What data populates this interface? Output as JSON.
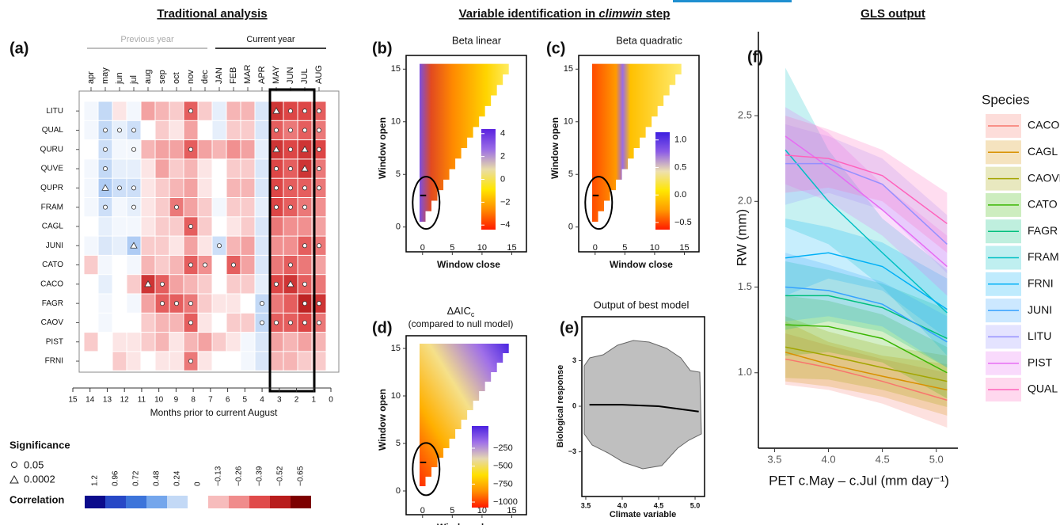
{
  "headers": {
    "left": "Traditional analysis",
    "middle_before": "Variable identification in",
    "middle_italic": "climwin",
    "middle_after": "step",
    "right": "GLS output"
  },
  "chart_data": [
    {
      "type": "heatmap",
      "label": "(a)",
      "previous_year_label": "Previous year",
      "current_year_label": "Current year",
      "columns": [
        "apr",
        "may",
        "jun",
        "jul",
        "aug",
        "sep",
        "oct",
        "nov",
        "dec",
        "JAN",
        "FEB",
        "MAR",
        "APR",
        "MAY",
        "JUN",
        "JUL",
        "AUG"
      ],
      "rows": [
        "LITU",
        "QUAL",
        "QURU",
        "QUVE",
        "QUPR",
        "FRAM",
        "CAGL",
        "JUNI",
        "CATO",
        "CACO",
        "FAGR",
        "CAOV",
        "PIST",
        "FRNI"
      ],
      "values": [
        [
          0.05,
          0.24,
          -0.05,
          0.05,
          -0.2,
          -0.15,
          -0.1,
          -0.35,
          -0.1,
          0.1,
          -0.15,
          -0.15,
          0.15,
          -0.45,
          -0.4,
          -0.4,
          -0.35
        ],
        [
          0.05,
          0.24,
          0.1,
          0.2,
          0,
          -0.1,
          -0.05,
          -0.2,
          0,
          0.1,
          -0.1,
          -0.1,
          0.15,
          -0.35,
          -0.3,
          -0.35,
          -0.3
        ],
        [
          0,
          0.2,
          0.05,
          0.05,
          -0.15,
          -0.2,
          -0.2,
          -0.35,
          -0.2,
          -0.15,
          -0.25,
          -0.2,
          0.1,
          -0.45,
          -0.4,
          -0.45,
          -0.4
        ],
        [
          0.05,
          0.24,
          0.1,
          0.1,
          -0.05,
          -0.2,
          -0.1,
          -0.15,
          -0.05,
          0,
          -0.1,
          -0.1,
          0.15,
          -0.4,
          -0.35,
          -0.45,
          -0.3
        ],
        [
          0.05,
          0.3,
          0.2,
          0.2,
          -0.05,
          -0.1,
          -0.15,
          -0.2,
          -0.05,
          0,
          -0.15,
          -0.15,
          0.15,
          -0.4,
          -0.35,
          -0.35,
          -0.3
        ],
        [
          0.05,
          0.2,
          0.05,
          0.1,
          -0.05,
          -0.1,
          -0.3,
          -0.2,
          -0.1,
          0.05,
          -0.1,
          -0.1,
          0.1,
          -0.4,
          -0.35,
          -0.3,
          -0.25
        ],
        [
          0,
          0.1,
          0.05,
          0.05,
          -0.05,
          -0.1,
          -0.1,
          -0.35,
          -0.1,
          0,
          -0.05,
          -0.1,
          0.15,
          -0.3,
          -0.25,
          -0.25,
          -0.2
        ],
        [
          0.05,
          0.15,
          0.1,
          0.3,
          -0.1,
          -0.1,
          -0.05,
          -0.2,
          -0.05,
          0.2,
          -0.15,
          -0.2,
          0.15,
          -0.25,
          -0.25,
          -0.35,
          -0.3
        ],
        [
          -0.1,
          0.05,
          0,
          0.05,
          -0.15,
          -0.1,
          -0.15,
          -0.35,
          -0.25,
          0,
          -0.35,
          -0.2,
          0.15,
          -0.3,
          -0.35,
          -0.3,
          -0.2
        ],
        [
          0,
          0.1,
          0,
          -0.1,
          -0.45,
          -0.35,
          -0.2,
          -0.15,
          -0.1,
          0,
          -0.1,
          -0.1,
          0.1,
          -0.4,
          -0.45,
          -0.35,
          -0.3
        ],
        [
          0,
          0.05,
          0,
          0.05,
          -0.2,
          -0.35,
          -0.35,
          -0.3,
          -0.1,
          -0.05,
          -0.05,
          0,
          0.24,
          -0.3,
          -0.35,
          -0.5,
          -0.45
        ],
        [
          0,
          0.05,
          0,
          0,
          -0.1,
          -0.15,
          -0.15,
          -0.35,
          -0.05,
          0,
          -0.1,
          -0.1,
          0.24,
          -0.35,
          -0.35,
          -0.4,
          -0.3
        ],
        [
          -0.1,
          0,
          -0.05,
          -0.05,
          -0.1,
          -0.15,
          -0.05,
          -0.15,
          -0.2,
          -0.1,
          -0.05,
          0.05,
          0.15,
          -0.2,
          -0.15,
          -0.2,
          -0.15
        ],
        [
          0,
          0,
          -0.1,
          -0.05,
          0,
          -0.05,
          -0.05,
          -0.3,
          -0.05,
          0,
          0,
          0.05,
          0.15,
          -0.15,
          -0.15,
          -0.1,
          -0.1
        ]
      ],
      "significance": [
        [
          null,
          null,
          null,
          null,
          null,
          null,
          null,
          0.05,
          null,
          null,
          null,
          null,
          null,
          0.0002,
          0.05,
          0.05,
          0.05
        ],
        [
          null,
          0.05,
          0.05,
          0.05,
          null,
          null,
          null,
          null,
          null,
          null,
          null,
          null,
          null,
          0.05,
          0.05,
          0.05,
          0.05
        ],
        [
          null,
          0.05,
          null,
          0.05,
          null,
          null,
          null,
          0.05,
          null,
          null,
          null,
          null,
          null,
          0.0002,
          0.05,
          0.0002,
          0.05
        ],
        [
          null,
          0.05,
          null,
          null,
          null,
          null,
          null,
          null,
          null,
          null,
          null,
          null,
          null,
          0.05,
          0.05,
          0.0002,
          0.05
        ],
        [
          null,
          0.0002,
          0.05,
          0.05,
          null,
          null,
          null,
          null,
          null,
          null,
          null,
          null,
          null,
          0.05,
          0.05,
          0.05,
          0.05
        ],
        [
          null,
          0.05,
          null,
          0.05,
          null,
          null,
          0.05,
          null,
          null,
          null,
          null,
          null,
          null,
          0.05,
          0.05,
          0.05,
          null
        ],
        [
          null,
          null,
          null,
          null,
          null,
          null,
          null,
          0.05,
          null,
          null,
          null,
          null,
          null,
          null,
          null,
          null,
          null
        ],
        [
          null,
          null,
          null,
          0.0002,
          null,
          null,
          null,
          null,
          null,
          0.05,
          null,
          null,
          null,
          null,
          null,
          0.05,
          0.05
        ],
        [
          null,
          null,
          null,
          null,
          null,
          null,
          null,
          0.05,
          0.05,
          null,
          0.05,
          null,
          null,
          null,
          0.05,
          null,
          null
        ],
        [
          null,
          null,
          null,
          null,
          0.0002,
          0.05,
          null,
          null,
          null,
          null,
          null,
          null,
          null,
          0.05,
          0.0002,
          0.05,
          null
        ],
        [
          null,
          null,
          null,
          null,
          null,
          0.05,
          0.05,
          0.05,
          null,
          null,
          null,
          null,
          0.05,
          null,
          null,
          0.05,
          0.05
        ],
        [
          null,
          null,
          null,
          null,
          null,
          null,
          null,
          0.05,
          null,
          null,
          null,
          null,
          0.05,
          0.05,
          0.05,
          0.05,
          0.05
        ],
        [
          null,
          null,
          null,
          null,
          null,
          null,
          null,
          null,
          null,
          null,
          null,
          null,
          null,
          null,
          null,
          null,
          null
        ],
        [
          null,
          null,
          null,
          null,
          null,
          null,
          null,
          0.05,
          null,
          null,
          null,
          null,
          null,
          null,
          null,
          null,
          null
        ]
      ],
      "month_ticks": [
        15,
        14,
        13,
        12,
        11,
        10,
        9,
        8,
        7,
        6,
        5,
        4,
        3,
        2,
        1,
        0
      ],
      "xlabel": "Months prior to current August",
      "significance_title": "Significance",
      "significance_levels": [
        0.05,
        0.0002
      ],
      "colorbar_title": "Correlation",
      "colorbar": {
        "ticks": [
          1.2,
          0.96,
          0.72,
          0.48,
          0.24,
          0,
          {
            "value": -0.13,
            "label": "−0.13"
          },
          {
            "value": -0.26,
            "label": "−0.26"
          },
          {
            "value": -0.39,
            "label": "−0.39"
          },
          {
            "value": -0.52,
            "label": "−0.52"
          },
          {
            "value": -0.65,
            "label": "−0.65"
          }
        ],
        "colors": [
          "#0b0b8c",
          "#2748c6",
          "#3c74da",
          "#74a6ec",
          "#c3d9f6",
          "#ffffff",
          "#f7bcbc",
          "#f08c8c",
          "#e04a4a",
          "#b81c1c",
          "#7d0000"
        ]
      }
    },
    {
      "type": "triangular-heatmap",
      "label": "(b)",
      "title": "Beta linear",
      "xlabel": "Window close",
      "ylabel": "Window open",
      "xlim": [
        -1.3,
        16.8
      ],
      "ylim": [
        -1,
        16
      ],
      "xticks": [
        0,
        5,
        10,
        15
      ],
      "yticks": [
        0,
        5,
        10,
        15
      ],
      "colorbar_lim": [
        -4.4,
        4.4
      ],
      "colorbar_ticks": [
        4,
        2,
        0,
        {
          "value": -2,
          "label": "−2"
        },
        {
          "value": -4,
          "label": "−4"
        }
      ],
      "colorbar_colors": [
        "#ff1a00",
        "#ff8c00",
        "#ffe600",
        "#e9dca8",
        "#9a6ce6",
        "#5a22e0"
      ]
    },
    {
      "type": "triangular-heatmap",
      "label": "(c)",
      "title": "Beta quadratic",
      "xlabel": "Window close",
      "ylabel": "Window open",
      "xlim": [
        -1.3,
        16.8
      ],
      "ylim": [
        -1,
        16
      ],
      "xticks": [
        0,
        5,
        10,
        15
      ],
      "yticks": [
        0,
        5,
        10,
        15
      ],
      "colorbar_lim": [
        -0.63,
        1.14
      ],
      "colorbar_ticks": [
        {
          "value": 1,
          "label": "1.0"
        },
        {
          "value": 0.5,
          "label": "0.5"
        },
        {
          "value": 0,
          "label": "0.0"
        },
        {
          "value": -0.5,
          "label": "−0.5"
        }
      ],
      "colorbar_colors": [
        "#ff1a00",
        "#ff9a00",
        "#ffe600",
        "#eee0b0",
        "#8c5ce6",
        "#3c1ee0"
      ]
    },
    {
      "type": "triangular-heatmap",
      "label": "(d)",
      "title": "ΔAIC",
      "title_subscript": "c",
      "subtitle": "(compared to null model)",
      "xlabel": "Window close",
      "ylabel": "Window open",
      "xlim": [
        -1.3,
        16.8
      ],
      "ylim": [
        -1,
        16
      ],
      "xticks": [
        0,
        5,
        10,
        15
      ],
      "yticks": [
        0,
        5,
        10,
        15
      ],
      "colorbar_lim": [
        -1077,
        59
      ],
      "colorbar_ticks": [
        {
          "value": -250,
          "label": "−250"
        },
        {
          "value": -500,
          "label": "−500"
        },
        {
          "value": -750,
          "label": "−750"
        },
        {
          "value": -1000,
          "label": "−1000"
        }
      ],
      "colorbar_colors": [
        "#ff1a00",
        "#ff9000",
        "#ffe000",
        "#e6d8b0",
        "#a070e8",
        "#4a20e0"
      ]
    },
    {
      "type": "scatter",
      "label": "(e)",
      "title": "Output of best model",
      "xlabel": "Climate variable",
      "ylabel": "Biological response",
      "xlim": [
        3.446,
        5.13
      ],
      "ylim": [
        -5.94,
        5.89
      ],
      "xticks": [
        3.5,
        {
          "value": 4,
          "label": "4.0"
        },
        4.5,
        {
          "value": 5,
          "label": "5.0"
        }
      ],
      "yticks": [
        3,
        0,
        {
          "value": -3,
          "label": "−3"
        }
      ],
      "fit": {
        "x": [
          3.55,
          4,
          4.5,
          5.05
        ],
        "y": [
          0.1,
          0.1,
          0,
          -0.35
        ]
      }
    },
    {
      "type": "line",
      "label": "(f)",
      "ylabel": "RW (mm)",
      "xlabel": "PET c.May – c.Jul (mm day⁻¹)",
      "legend_title": "Species",
      "xlim": [
        3.35,
        5.2
      ],
      "ylim": [
        0.56,
        2.99
      ],
      "xticks": [
        3.5,
        {
          "value": 4,
          "label": "4.0"
        },
        4.5,
        {
          "value": 5,
          "label": "5.0"
        }
      ],
      "yticks": [
        {
          "value": 1,
          "label": "1.0"
        },
        1.5,
        {
          "value": 2,
          "label": "2.0"
        },
        2.5
      ],
      "x": [
        3.6,
        4,
        4.5,
        5.1
      ],
      "series": [
        {
          "name": "CACO",
          "color": "#f8766d",
          "values": [
            1.08,
            1.03,
            0.95,
            0.84
          ],
          "lower": [
            0.93,
            0.9,
            0.82,
            0.68
          ],
          "upper": [
            1.23,
            1.16,
            1.08,
            1
          ]
        },
        {
          "name": "CAGL",
          "color": "#d89000",
          "values": [
            1.12,
            1.05,
            0.98,
            0.9
          ],
          "lower": [
            0.95,
            0.92,
            0.86,
            0.75
          ],
          "upper": [
            1.3,
            1.18,
            1.1,
            1.05
          ]
        },
        {
          "name": "CAOVL",
          "color": "#a3a500",
          "values": [
            1.15,
            1.1,
            1.03,
            0.95
          ],
          "lower": [
            0.97,
            0.96,
            0.9,
            0.8
          ],
          "upper": [
            1.33,
            1.24,
            1.16,
            1.1
          ]
        },
        {
          "name": "CATO",
          "color": "#39b600",
          "values": [
            1.28,
            1.27,
            1.2,
            1
          ],
          "lower": [
            1.1,
            1.12,
            1.06,
            0.85
          ],
          "upper": [
            1.45,
            1.42,
            1.34,
            1.15
          ]
        },
        {
          "name": "FAGR",
          "color": "#00bf7d",
          "values": [
            1.45,
            1.45,
            1.38,
            1.2
          ],
          "lower": [
            1.25,
            1.3,
            1.24,
            1.03
          ],
          "upper": [
            1.65,
            1.6,
            1.52,
            1.37
          ]
        },
        {
          "name": "FRAM",
          "color": "#00bfc4",
          "values": [
            2.3,
            2,
            1.7,
            1.35
          ],
          "lower": [
            1.85,
            1.75,
            1.5,
            1.1
          ],
          "upper": [
            2.78,
            2.3,
            1.9,
            1.6
          ]
        },
        {
          "name": "FRNI",
          "color": "#00b0f6",
          "values": [
            1.67,
            1.7,
            1.62,
            1.37
          ],
          "lower": [
            1.45,
            1.55,
            1.48,
            1.2
          ],
          "upper": [
            1.9,
            1.85,
            1.76,
            1.55
          ]
        },
        {
          "name": "JUNI",
          "color": "#35a2ff",
          "values": [
            1.5,
            1.48,
            1.4,
            1.18
          ],
          "lower": [
            1.3,
            1.33,
            1.27,
            1.03
          ],
          "upper": [
            1.7,
            1.63,
            1.53,
            1.33
          ]
        },
        {
          "name": "LITU",
          "color": "#9590ff",
          "values": [
            2.22,
            2.22,
            2.1,
            1.75
          ],
          "lower": [
            1.98,
            2.05,
            1.95,
            1.58
          ],
          "upper": [
            2.45,
            2.38,
            2.25,
            1.92
          ]
        },
        {
          "name": "PIST",
          "color": "#e76bf3",
          "values": [
            2.38,
            2.2,
            1.95,
            1.62
          ],
          "lower": [
            2.1,
            2,
            1.8,
            1.45
          ],
          "upper": [
            2.55,
            2.4,
            2.1,
            1.8
          ]
        },
        {
          "name": "QUAL",
          "color": "#ff62bc",
          "values": [
            2.27,
            2.25,
            2.15,
            1.87
          ],
          "lower": [
            2.05,
            2.08,
            2,
            1.7
          ],
          "upper": [
            2.5,
            2.42,
            2.3,
            2.05
          ]
        }
      ]
    }
  ]
}
